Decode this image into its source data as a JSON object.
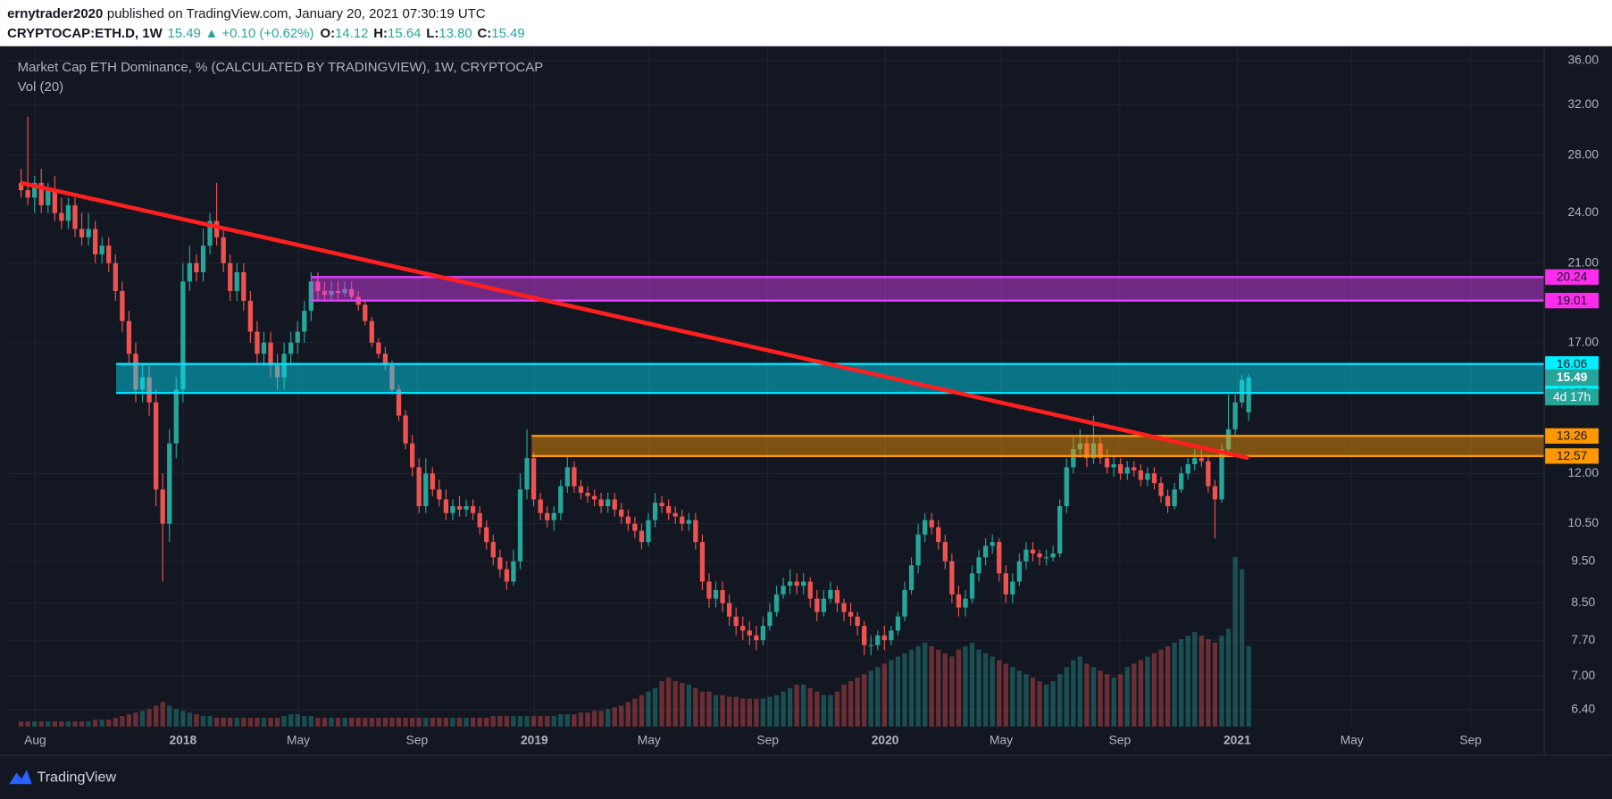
{
  "header": {
    "author": "ernytrader2020",
    "published": "published on TradingView.com, January 20, 2021 07:30:19 UTC",
    "symbol": "CRYPTOCAP:ETH.D, 1W",
    "last": "15.49",
    "change": "▲ +0.10 (+0.62%)",
    "ohlc": [
      {
        "label": "O:",
        "value": "14.12"
      },
      {
        "label": "H:",
        "value": "15.64"
      },
      {
        "label": "L:",
        "value": "13.80"
      },
      {
        "label": "C:",
        "value": "15.49"
      }
    ]
  },
  "chart_data": {
    "type": "candlestick",
    "title": "Market Cap ETH Dominance, % (CALCULATED BY TRADINGVIEW), 1W, CRYPTOCAP",
    "volume_label": "Vol (20)",
    "log_scale": true,
    "grid": true,
    "up_color": "#26a69a",
    "down_color": "#ef5350",
    "xlim": [
      -1.9,
      225.8
    ],
    "ylim": [
      6.12,
      37.4
    ],
    "vlim": [
      0,
      100
    ],
    "xticks": [
      {
        "value": 2.1,
        "label": "Aug"
      },
      {
        "value": 24,
        "label": "2018"
      },
      {
        "value": 41.1,
        "label": "May"
      },
      {
        "value": 58.7,
        "label": "Sep"
      },
      {
        "value": 76.1,
        "label": "2019"
      },
      {
        "value": 93.1,
        "label": "May"
      },
      {
        "value": 110.7,
        "label": "Sep"
      },
      {
        "value": 128.1,
        "label": "2020"
      },
      {
        "value": 145.3,
        "label": "May"
      },
      {
        "value": 162.9,
        "label": "Sep"
      },
      {
        "value": 180.3,
        "label": "2021"
      },
      {
        "value": 197.3,
        "label": "May"
      },
      {
        "value": 214.9,
        "label": "Sep"
      }
    ],
    "yticks": [
      {
        "value": 36,
        "label": "36.00"
      },
      {
        "value": 32,
        "label": "32.00"
      },
      {
        "value": 28,
        "label": "28.00"
      },
      {
        "value": 24,
        "label": "24.00"
      },
      {
        "value": 21,
        "label": "21.00"
      },
      {
        "value": 17,
        "label": "17.00"
      },
      {
        "value": 12,
        "label": "12.00"
      },
      {
        "value": 10.5,
        "label": "10.50"
      },
      {
        "value": 9.5,
        "label": "9.50"
      },
      {
        "value": 8.5,
        "label": "8.50"
      },
      {
        "value": 7.7,
        "label": "7.70"
      },
      {
        "value": 7,
        "label": "7.00"
      },
      {
        "value": 6.4,
        "label": "6.40"
      }
    ],
    "x": [
      0,
      1,
      2,
      3,
      4,
      5,
      6,
      7,
      8,
      9,
      10,
      11,
      12,
      13,
      14,
      15,
      16,
      17,
      18,
      19,
      20,
      21,
      22,
      23,
      24,
      25,
      26,
      27,
      28,
      29,
      30,
      31,
      32,
      33,
      34,
      35,
      36,
      37,
      38,
      39,
      40,
      41,
      42,
      43,
      44,
      45,
      46,
      47,
      48,
      49,
      50,
      51,
      52,
      53,
      54,
      55,
      56,
      57,
      58,
      59,
      60,
      61,
      62,
      63,
      64,
      65,
      66,
      67,
      68,
      69,
      70,
      71,
      72,
      73,
      74,
      75,
      76,
      77,
      78,
      79,
      80,
      81,
      82,
      83,
      84,
      85,
      86,
      87,
      88,
      89,
      90,
      91,
      92,
      93,
      94,
      95,
      96,
      97,
      98,
      99,
      100,
      101,
      102,
      103,
      104,
      105,
      106,
      107,
      108,
      109,
      110,
      111,
      112,
      113,
      114,
      115,
      116,
      117,
      118,
      119,
      120,
      121,
      122,
      123,
      124,
      125,
      126,
      127,
      128,
      129,
      130,
      131,
      132,
      133,
      134,
      135,
      136,
      137,
      138,
      139,
      140,
      141,
      142,
      143,
      144,
      145,
      146,
      147,
      148,
      149,
      150,
      151,
      152,
      153,
      154,
      155,
      156,
      157,
      158,
      159,
      160,
      161,
      162,
      163,
      164,
      165,
      166,
      167,
      168,
      169,
      170,
      171,
      172,
      173,
      174,
      175,
      176,
      177,
      178,
      179,
      180,
      181,
      182
    ],
    "open": [
      26.0,
      25.5,
      25.0,
      26.0,
      24.5,
      25.5,
      24.0,
      23.5,
      24.5,
      23.0,
      22.5,
      23.0,
      21.5,
      22.0,
      21.0,
      19.5,
      18.0,
      16.5,
      15.0,
      15.5,
      14.5,
      11.5,
      10.5,
      13.0,
      15.0,
      20.0,
      21.0,
      20.5,
      22.0,
      23.5,
      22.5,
      21.0,
      19.5,
      20.5,
      19.0,
      17.5,
      16.5,
      17.0,
      16.0,
      15.5,
      16.5,
      17.0,
      17.5,
      18.5,
      20.0,
      19.5,
      19.3,
      19.5,
      19.4,
      19.6,
      19.2,
      18.8,
      18.0,
      17.0,
      16.5,
      16.0,
      15.0,
      14.0,
      13.0,
      12.2,
      11.0,
      12.0,
      11.5,
      11.2,
      10.8,
      11.0,
      10.9,
      11.0,
      10.8,
      10.4,
      10.0,
      9.6,
      9.3,
      9.0,
      9.5,
      11.5,
      12.5,
      11.2,
      10.8,
      10.6,
      10.8,
      11.6,
      12.2,
      11.6,
      11.4,
      11.3,
      11.2,
      11.0,
      11.2,
      10.9,
      10.7,
      10.5,
      10.3,
      10.0,
      10.6,
      11.1,
      11.0,
      10.8,
      10.7,
      10.5,
      10.6,
      10.0,
      9.0,
      8.6,
      8.8,
      8.5,
      8.2,
      8.0,
      7.9,
      7.8,
      7.7,
      8.0,
      8.3,
      8.7,
      8.9,
      9.0,
      8.9,
      9.0,
      8.6,
      8.3,
      8.6,
      8.8,
      8.5,
      8.3,
      8.2,
      8.0,
      7.6,
      7.6,
      7.8,
      7.7,
      7.9,
      8.2,
      8.8,
      9.4,
      10.2,
      10.6,
      10.4,
      10.0,
      9.5,
      8.7,
      8.4,
      8.6,
      9.2,
      9.6,
      9.9,
      10.0,
      9.2,
      8.7,
      9.0,
      9.5,
      9.8,
      9.7,
      9.6,
      9.6,
      9.7,
      11.0,
      12.2,
      12.8,
      13.0,
      12.5,
      13.0,
      12.5,
      12.2,
      12.3,
      12.0,
      12.2,
      12.1,
      11.8,
      12.0,
      11.7,
      11.3,
      11.0,
      11.5,
      12.0,
      12.3,
      12.5,
      12.4,
      11.6,
      11.2,
      12.8,
      13.5,
      14.5,
      14.12
    ],
    "high": [
      27.0,
      31.0,
      26.5,
      27.0,
      26.0,
      26.5,
      25.0,
      25.0,
      25.0,
      24.0,
      24.0,
      23.5,
      22.5,
      22.5,
      21.5,
      20.0,
      18.5,
      17.0,
      16.0,
      16.0,
      15.0,
      12.0,
      13.5,
      15.5,
      21.0,
      22.0,
      21.5,
      23.0,
      24.0,
      26.0,
      23.0,
      21.5,
      21.0,
      21.0,
      19.5,
      18.0,
      17.5,
      17.5,
      16.5,
      17.0,
      17.5,
      18.0,
      19.0,
      20.5,
      20.5,
      20.0,
      20.0,
      20.0,
      20.0,
      20.0,
      19.5,
      19.0,
      18.2,
      17.2,
      16.8,
      16.2,
      15.2,
      14.2,
      13.3,
      12.5,
      12.5,
      12.2,
      11.8,
      11.5,
      11.2,
      11.3,
      11.2,
      11.2,
      11.0,
      10.6,
      10.2,
      9.8,
      9.5,
      9.8,
      12.0,
      13.5,
      12.7,
      11.4,
      11.0,
      11.0,
      11.8,
      12.6,
      12.4,
      11.8,
      11.6,
      11.5,
      11.4,
      11.4,
      11.4,
      11.1,
      10.9,
      10.7,
      10.5,
      10.8,
      11.4,
      11.3,
      11.2,
      11.0,
      10.9,
      10.8,
      10.8,
      10.2,
      9.2,
      9.0,
      9.0,
      8.7,
      8.4,
      8.2,
      8.1,
      8.0,
      8.2,
      8.5,
      8.9,
      9.1,
      9.3,
      9.2,
      9.2,
      9.1,
      8.8,
      8.8,
      9.0,
      8.9,
      8.6,
      8.5,
      8.3,
      8.1,
      7.8,
      7.9,
      8.0,
      8.0,
      8.3,
      9.0,
      9.6,
      10.5,
      10.8,
      10.8,
      10.6,
      10.2,
      9.7,
      8.9,
      8.8,
      9.4,
      9.8,
      10.1,
      10.2,
      10.1,
      9.4,
      9.2,
      9.7,
      10.0,
      10.0,
      9.8,
      9.8,
      9.9,
      11.2,
      12.5,
      13.3,
      13.5,
      13.3,
      14.0,
      13.2,
      12.8,
      12.6,
      12.5,
      12.4,
      12.4,
      12.3,
      12.2,
      12.2,
      11.9,
      11.5,
      11.7,
      12.2,
      12.5,
      12.8,
      12.8,
      12.6,
      11.8,
      13.0,
      14.8,
      14.8,
      15.6,
      15.64
    ],
    "low": [
      25.0,
      24.5,
      24.0,
      24.0,
      24.0,
      23.5,
      23.0,
      23.0,
      22.5,
      22.0,
      22.0,
      21.0,
      21.0,
      20.5,
      19.0,
      17.5,
      16.0,
      14.5,
      14.5,
      14.0,
      11.0,
      9.0,
      10.0,
      12.5,
      14.5,
      19.5,
      20.0,
      20.0,
      21.5,
      22.0,
      20.5,
      19.0,
      19.0,
      18.5,
      17.0,
      16.0,
      16.0,
      15.5,
      15.0,
      15.0,
      16.0,
      16.5,
      17.0,
      18.0,
      19.0,
      19.0,
      19.0,
      19.1,
      19.2,
      19.0,
      18.5,
      17.8,
      16.8,
      16.3,
      15.8,
      14.8,
      13.8,
      12.8,
      11.9,
      10.8,
      10.8,
      11.3,
      11.0,
      10.6,
      10.6,
      10.7,
      10.7,
      10.6,
      10.2,
      9.8,
      9.4,
      9.1,
      8.8,
      8.9,
      9.3,
      11.2,
      11.0,
      10.6,
      10.4,
      10.3,
      10.6,
      11.4,
      11.4,
      11.2,
      11.1,
      11.0,
      10.8,
      10.8,
      10.7,
      10.5,
      10.3,
      10.1,
      9.8,
      9.9,
      10.4,
      10.8,
      10.6,
      10.5,
      10.3,
      10.3,
      9.8,
      8.8,
      8.4,
      8.4,
      8.3,
      8.0,
      7.8,
      7.7,
      7.6,
      7.5,
      7.6,
      7.9,
      8.2,
      8.6,
      8.7,
      8.7,
      8.7,
      8.4,
      8.1,
      8.2,
      8.5,
      8.3,
      8.1,
      8.0,
      7.8,
      7.4,
      7.4,
      7.5,
      7.5,
      7.6,
      7.8,
      8.1,
      8.7,
      9.2,
      10.0,
      10.2,
      9.8,
      9.3,
      8.5,
      8.2,
      8.2,
      8.5,
      9.0,
      9.4,
      9.7,
      9.0,
      8.5,
      8.5,
      8.9,
      9.3,
      9.5,
      9.4,
      9.4,
      9.5,
      9.6,
      10.8,
      12.0,
      12.5,
      12.2,
      12.3,
      12.3,
      12.0,
      11.9,
      11.8,
      11.8,
      11.9,
      11.6,
      11.6,
      11.5,
      11.1,
      10.8,
      10.9,
      11.4,
      11.8,
      12.1,
      12.2,
      11.4,
      10.1,
      11.1,
      12.6,
      13.3,
      14.3,
      13.8
    ],
    "close": [
      25.5,
      25.0,
      26.0,
      24.5,
      25.5,
      24.0,
      23.5,
      24.5,
      23.0,
      22.5,
      23.0,
      21.5,
      22.0,
      21.0,
      19.5,
      18.0,
      16.5,
      15.0,
      15.5,
      14.5,
      11.5,
      10.5,
      13.0,
      15.0,
      20.0,
      21.0,
      20.5,
      22.0,
      23.5,
      22.5,
      21.0,
      19.5,
      20.5,
      19.0,
      17.5,
      16.5,
      17.0,
      16.0,
      15.5,
      16.5,
      17.0,
      17.5,
      18.5,
      20.0,
      19.5,
      19.3,
      19.5,
      19.4,
      19.6,
      19.2,
      18.8,
      18.0,
      17.0,
      16.5,
      16.0,
      15.0,
      14.0,
      13.0,
      12.2,
      11.0,
      12.0,
      11.5,
      11.2,
      10.8,
      11.0,
      10.9,
      11.0,
      10.8,
      10.4,
      10.0,
      9.6,
      9.3,
      9.0,
      9.5,
      11.5,
      12.5,
      11.2,
      10.8,
      10.6,
      10.8,
      11.6,
      12.2,
      11.6,
      11.4,
      11.3,
      11.2,
      11.0,
      11.2,
      10.9,
      10.7,
      10.5,
      10.3,
      10.0,
      10.6,
      11.1,
      11.0,
      10.8,
      10.7,
      10.5,
      10.6,
      10.0,
      9.0,
      8.6,
      8.8,
      8.5,
      8.2,
      8.0,
      7.9,
      7.8,
      7.7,
      8.0,
      8.3,
      8.7,
      8.9,
      9.0,
      8.9,
      9.0,
      8.6,
      8.3,
      8.6,
      8.8,
      8.5,
      8.3,
      8.2,
      8.0,
      7.6,
      7.6,
      7.8,
      7.7,
      7.9,
      8.2,
      8.8,
      9.4,
      10.2,
      10.6,
      10.4,
      10.0,
      9.5,
      8.7,
      8.4,
      8.6,
      9.2,
      9.6,
      9.9,
      10.0,
      9.2,
      8.7,
      9.0,
      9.5,
      9.8,
      9.7,
      9.6,
      9.6,
      9.7,
      11.0,
      12.2,
      12.8,
      13.0,
      12.5,
      13.0,
      12.5,
      12.2,
      12.3,
      12.0,
      12.2,
      12.1,
      11.8,
      12.0,
      11.7,
      11.3,
      11.0,
      11.5,
      12.0,
      12.3,
      12.5,
      12.4,
      11.6,
      11.2,
      12.8,
      13.5,
      14.5,
      15.39,
      15.49
    ],
    "volume": [
      3,
      3,
      3,
      3,
      3,
      3,
      3,
      3,
      3,
      3,
      3,
      4,
      4,
      4,
      5,
      6,
      7,
      8,
      9,
      10,
      12,
      14,
      12,
      10,
      9,
      8,
      7,
      6,
      6,
      5,
      5,
      5,
      5,
      5,
      5,
      5,
      5,
      5,
      5,
      6,
      7,
      7,
      6,
      6,
      5,
      5,
      5,
      5,
      5,
      5,
      5,
      5,
      5,
      5,
      5,
      5,
      5,
      5,
      5,
      5,
      5,
      5,
      5,
      5,
      5,
      5,
      5,
      5,
      5,
      5,
      6,
      6,
      6,
      6,
      6,
      6,
      6,
      6,
      6,
      6,
      7,
      7,
      7,
      8,
      8,
      9,
      9,
      10,
      11,
      12,
      14,
      16,
      18,
      20,
      22,
      26,
      28,
      26,
      25,
      24,
      22,
      20,
      20,
      18,
      18,
      17,
      17,
      16,
      16,
      16,
      16,
      17,
      18,
      20,
      22,
      24,
      24,
      22,
      20,
      18,
      18,
      20,
      24,
      26,
      28,
      30,
      32,
      34,
      36,
      38,
      40,
      42,
      44,
      46,
      48,
      46,
      44,
      42,
      40,
      44,
      46,
      48,
      44,
      42,
      40,
      38,
      36,
      34,
      32,
      30,
      28,
      26,
      24,
      26,
      30,
      34,
      38,
      40,
      36,
      34,
      32,
      30,
      28,
      30,
      34,
      36,
      38,
      40,
      42,
      44,
      46,
      48,
      50,
      52,
      54,
      52,
      50,
      48,
      52,
      56,
      97,
      90,
      46
    ],
    "zones": [
      {
        "low": 19.01,
        "high": 20.24,
        "start": 43,
        "color": "#e040fb",
        "tag_color": "#ff2cf0"
      },
      {
        "low": 14.87,
        "high": 16.06,
        "start": 14.1,
        "color": "#00e5ff",
        "tag_color": "#00f0ff"
      },
      {
        "low": 12.57,
        "high": 13.26,
        "start": 75.7,
        "color": "#ff9800",
        "tag_color": "#ff9800"
      }
    ],
    "trendline": {
      "x": [
        0,
        182
      ],
      "y": [
        26.0,
        12.5
      ],
      "color": "#ff1f1f"
    },
    "countdown": "4d 17h"
  },
  "footer": {
    "brand": "TradingView"
  }
}
